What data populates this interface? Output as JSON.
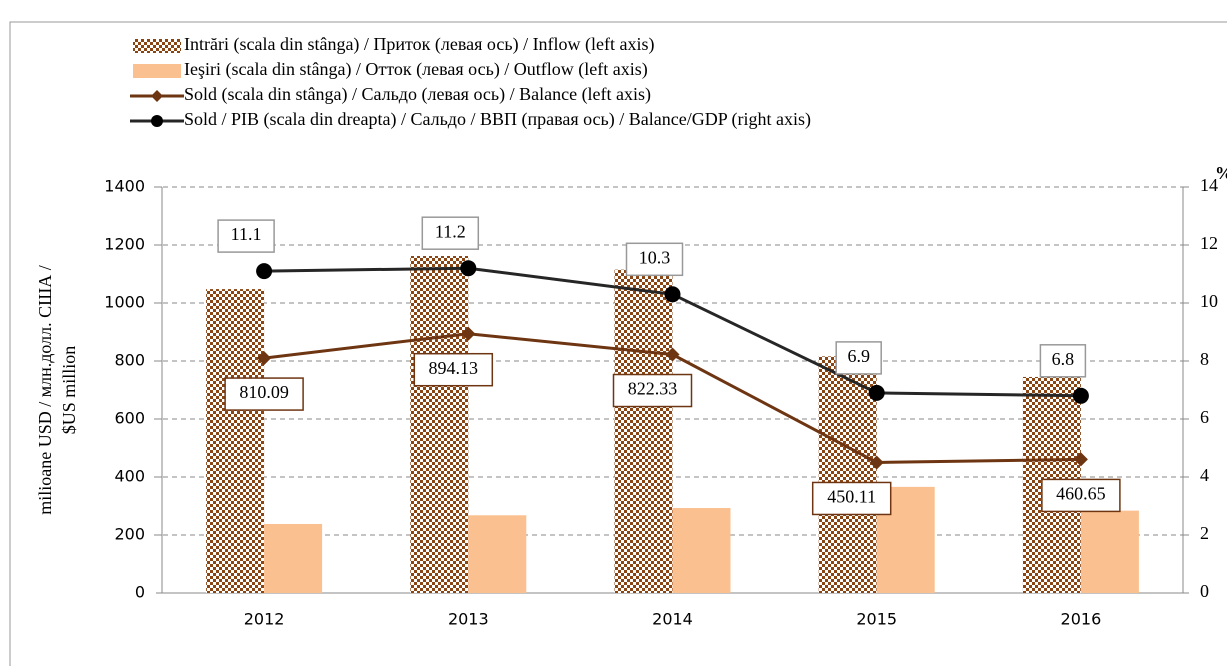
{
  "chart_data": {
    "type": "bar_line",
    "y_label": [
      "milioane USD / млн.долл. США /",
      "$US million"
    ],
    "y2_label": "%",
    "categories": [
      "2012",
      "2013",
      "2014",
      "2015",
      "2016"
    ],
    "series": [
      {
        "name": "Intrări (scala din stânga) / Приток (левая ось) / Inflow (left axis)",
        "type": "bar",
        "color": "#8b4513",
        "values": [
          1048,
          1162,
          1115,
          816,
          745
        ]
      },
      {
        "name": "Ieşiri (scala din stânga)  / Отток (левая ось)  / Outflow (left axis)",
        "type": "bar",
        "color": "#fac090",
        "values": [
          238,
          268,
          293,
          366,
          284
        ]
      },
      {
        "name": "Sold (scala din stânga) / Сальдо (левая ось) / Balance (left axis)",
        "type": "line",
        "color": "#6e3512",
        "marker": "diamond",
        "values": [
          810.09,
          894.13,
          822.33,
          450.11,
          460.65
        ]
      },
      {
        "name": "Sold / PIB (scala din dreapta) / Сальдо / ВВП (правая ось) / Balance/GDP (right axis)",
        "type": "line",
        "axis": "y2",
        "color": "#262626",
        "marker": "circle",
        "values": [
          11.1,
          11.2,
          10.3,
          6.9,
          6.8
        ]
      }
    ],
    "ylim": [
      0,
      1400
    ],
    "yticks": [
      0,
      200,
      400,
      600,
      800,
      1000,
      1200,
      1400
    ],
    "y2lim": [
      0,
      14
    ],
    "y2ticks": [
      0,
      2,
      4,
      6,
      8,
      10,
      12,
      14
    ],
    "grid": true
  }
}
